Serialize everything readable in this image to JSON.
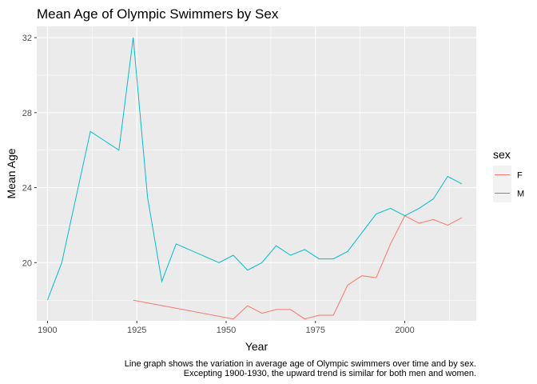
{
  "chart_data": {
    "type": "line",
    "title": "Mean Age of Olympic Swimmers by Sex",
    "xlabel": "Year",
    "ylabel": "Mean Age",
    "xlim": [
      1897,
      2020
    ],
    "ylim": [
      16.9,
      32.6
    ],
    "x_ticks": [
      1900,
      1925,
      1950,
      1975,
      2000
    ],
    "y_ticks": [
      20,
      24,
      28,
      32
    ],
    "grid": true,
    "legend": {
      "title": "sex",
      "position": "right"
    },
    "series": [
      {
        "name": "F",
        "color": "#F8766D",
        "x": [
          1924,
          1952,
          1956,
          1960,
          1964,
          1968,
          1972,
          1976,
          1980,
          1984,
          1988,
          1992,
          1996,
          2000,
          2004,
          2008,
          2012,
          2016
        ],
        "y": [
          18.0,
          17.0,
          17.7,
          17.3,
          17.5,
          17.5,
          17.0,
          17.2,
          17.2,
          18.8,
          19.3,
          19.2,
          21.0,
          22.5,
          22.1,
          22.3,
          22.0,
          22.4
        ]
      },
      {
        "name": "M",
        "color": "#00BFC4",
        "x": [
          1900,
          1904,
          1908,
          1912,
          1920,
          1924,
          1928,
          1932,
          1936,
          1948,
          1952,
          1956,
          1960,
          1964,
          1968,
          1972,
          1976,
          1980,
          1984,
          1988,
          1992,
          1996,
          2000,
          2004,
          2008,
          2012,
          2016
        ],
        "y": [
          18.0,
          20.0,
          23.5,
          27.0,
          26.0,
          32.0,
          23.5,
          19.0,
          21.0,
          20.0,
          20.4,
          19.6,
          20.0,
          20.9,
          20.4,
          20.7,
          20.2,
          20.2,
          20.6,
          21.6,
          22.6,
          22.9,
          22.5,
          22.9,
          23.4,
          24.6,
          24.2
        ]
      }
    ],
    "caption": [
      "Line graph shows the variation in average age of Olympic swimmers over time and by sex.",
      "Excepting 1900-1930, the upward trend is similar for both men and women."
    ]
  }
}
